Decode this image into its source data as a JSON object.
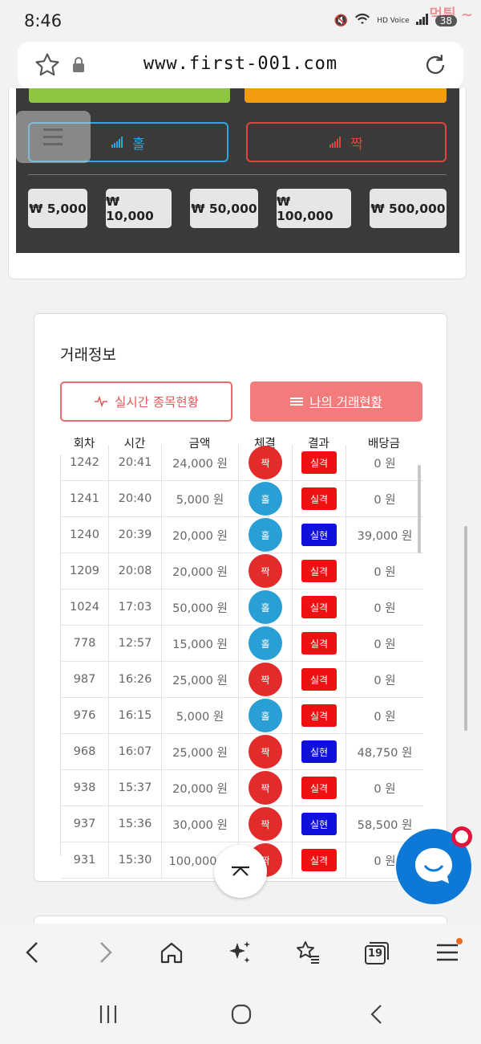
{
  "status_bar": {
    "time": "8:46",
    "network_label": "HD Voice",
    "battery": "38",
    "watermark": "먹튀 ~"
  },
  "browser": {
    "url": "www.first-001.com"
  },
  "game": {
    "bet_odd_label": "홀",
    "bet_even_label": "짝",
    "chips": [
      "₩ 5,000",
      "₩ 10,000",
      "₩ 50,000",
      "₩ 100,000",
      "₩ 500,000"
    ]
  },
  "trade": {
    "title": "거래정보",
    "tab_live": "실시간 종목현황",
    "tab_mine": "나의 거래현황",
    "columns": [
      "회차",
      "시간",
      "금액",
      "체결",
      "결과",
      "배당금"
    ],
    "rows": [
      {
        "round": "1242",
        "time": "20:41",
        "amount": "24,000 원",
        "pick": "짝",
        "result": "실격",
        "payout": "0 원"
      },
      {
        "round": "1241",
        "time": "20:40",
        "amount": "5,000 원",
        "pick": "홀",
        "result": "실격",
        "payout": "0 원"
      },
      {
        "round": "1240",
        "time": "20:39",
        "amount": "20,000 원",
        "pick": "홀",
        "result": "실현",
        "payout": "39,000 원"
      },
      {
        "round": "1209",
        "time": "20:08",
        "amount": "20,000 원",
        "pick": "짝",
        "result": "실격",
        "payout": "0 원"
      },
      {
        "round": "1024",
        "time": "17:03",
        "amount": "50,000 원",
        "pick": "홀",
        "result": "실격",
        "payout": "0 원"
      },
      {
        "round": "778",
        "time": "12:57",
        "amount": "15,000 원",
        "pick": "홀",
        "result": "실격",
        "payout": "0 원"
      },
      {
        "round": "987",
        "time": "16:26",
        "amount": "25,000 원",
        "pick": "짝",
        "result": "실격",
        "payout": "0 원"
      },
      {
        "round": "976",
        "time": "16:15",
        "amount": "5,000 원",
        "pick": "홀",
        "result": "실격",
        "payout": "0 원"
      },
      {
        "round": "968",
        "time": "16:07",
        "amount": "25,000 원",
        "pick": "짝",
        "result": "실현",
        "payout": "48,750 원"
      },
      {
        "round": "938",
        "time": "15:37",
        "amount": "20,000 원",
        "pick": "짝",
        "result": "실격",
        "payout": "0 원"
      },
      {
        "round": "937",
        "time": "15:36",
        "amount": "30,000 원",
        "pick": "짝",
        "result": "실현",
        "payout": "58,500 원"
      },
      {
        "round": "931",
        "time": "15:30",
        "amount": "100,000 원",
        "pick": "짝",
        "result": "실격",
        "payout": "0 원"
      }
    ]
  },
  "bottom_nav": {
    "tab_count": "19"
  },
  "colors": {
    "odd": "#2a9fd6",
    "even": "#e32b2b",
    "fail": "#ee1111",
    "win": "#1010dd",
    "accent": "#f27b7b"
  },
  "icons": [
    "star-icon",
    "lock-icon",
    "reload-icon",
    "signal-bars-icon",
    "menu-icon",
    "pulse-icon",
    "list-icon",
    "chevron-up-icon",
    "chat-icon",
    "back-icon",
    "forward-icon",
    "home-icon",
    "sparkle-icon",
    "bookmarks-icon",
    "tabs-icon",
    "hamburger-icon"
  ]
}
